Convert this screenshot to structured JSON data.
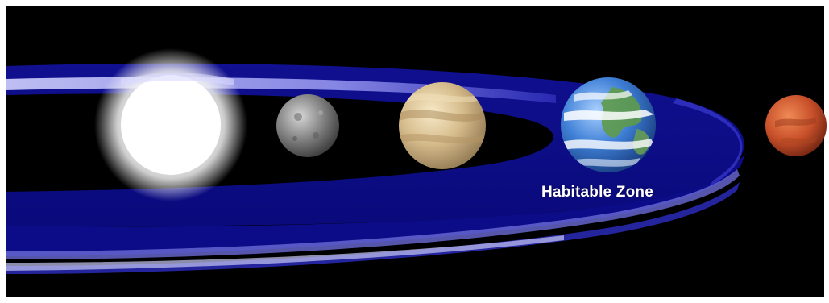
{
  "diagram": {
    "label": "Habitable Zone",
    "colors": {
      "space": "#000000",
      "frame": "#ffffff",
      "zone": "#0a0a9c",
      "zone_highlight": "#b8b8f4",
      "sun": "#ffffff",
      "mercury": "#8a8a8a",
      "venus": "#d9c094",
      "earth": "#3f7fd6",
      "mars": "#c8502a"
    },
    "bodies": [
      "sun-icon",
      "mercury-icon",
      "venus-icon",
      "earth-icon",
      "mars-icon"
    ]
  }
}
